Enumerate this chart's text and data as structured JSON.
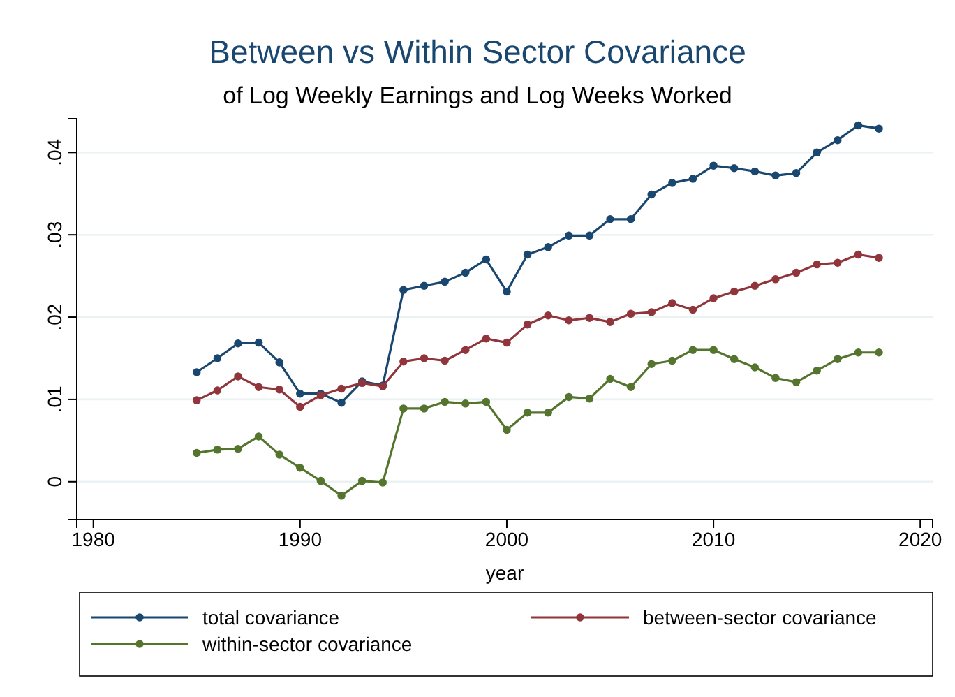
{
  "chart_data": {
    "type": "line",
    "title": "Between vs Within Sector Covariance",
    "subtitle": "of Log Weekly Earnings and Log Weeks Worked",
    "xlabel": "year",
    "x": [
      1985,
      1986,
      1987,
      1988,
      1989,
      1990,
      1991,
      1992,
      1993,
      1994,
      1995,
      1996,
      1997,
      1998,
      1999,
      2000,
      2001,
      2002,
      2003,
      2004,
      2005,
      2006,
      2007,
      2008,
      2009,
      2010,
      2011,
      2012,
      2013,
      2014,
      2015,
      2016,
      2017,
      2018
    ],
    "series": [
      {
        "name": "total covariance",
        "color": "#1a476f",
        "values": [
          0.0133,
          0.015,
          0.0168,
          0.0169,
          0.0145,
          0.0107,
          0.0107,
          0.0096,
          0.0122,
          0.0117,
          0.0233,
          0.0238,
          0.0243,
          0.0254,
          0.027,
          0.0231,
          0.0276,
          0.0285,
          0.0299,
          0.0299,
          0.0319,
          0.0319,
          0.0349,
          0.0363,
          0.0368,
          0.0384,
          0.0381,
          0.0377,
          0.0372,
          0.0375,
          0.04,
          0.0415,
          0.0433,
          0.0429
        ]
      },
      {
        "name": "between-sector covariance",
        "color": "#90353b",
        "values": [
          0.0099,
          0.0111,
          0.0128,
          0.0115,
          0.0112,
          0.0091,
          0.0105,
          0.0113,
          0.012,
          0.0116,
          0.0146,
          0.015,
          0.0147,
          0.016,
          0.0174,
          0.0169,
          0.0191,
          0.0202,
          0.0196,
          0.0199,
          0.0194,
          0.0204,
          0.0206,
          0.0217,
          0.0209,
          0.0223,
          0.0231,
          0.0238,
          0.0246,
          0.0254,
          0.0264,
          0.0266,
          0.0276,
          0.0272
        ]
      },
      {
        "name": "within-sector covariance",
        "color": "#55752f",
        "values": [
          0.0035,
          0.0039,
          0.004,
          0.0055,
          0.0033,
          0.0017,
          0.0001,
          -0.0017,
          0.0001,
          -0.0001,
          0.0089,
          0.0089,
          0.0097,
          0.0095,
          0.0097,
          0.0063,
          0.0084,
          0.0084,
          0.0103,
          0.0101,
          0.0125,
          0.0115,
          0.0143,
          0.0147,
          0.016,
          0.016,
          0.0149,
          0.0139,
          0.0126,
          0.0121,
          0.0135,
          0.0149,
          0.0157,
          0.0157
        ]
      }
    ],
    "xlim": [
      1979.2,
      2020.6
    ],
    "xticks": [
      1980,
      1990,
      2000,
      2010,
      2020
    ],
    "ylim": [
      -0.0046,
      0.0441
    ],
    "yticks": [
      {
        "value": 0,
        "label": "0"
      },
      {
        "value": 0.01,
        "label": ".01"
      },
      {
        "value": 0.02,
        "label": ".02"
      },
      {
        "value": 0.03,
        "label": ".03"
      },
      {
        "value": 0.04,
        "label": ".04"
      }
    ],
    "grid": "y",
    "legend": "bottom",
    "marker": "circle",
    "line_style": "solid"
  }
}
